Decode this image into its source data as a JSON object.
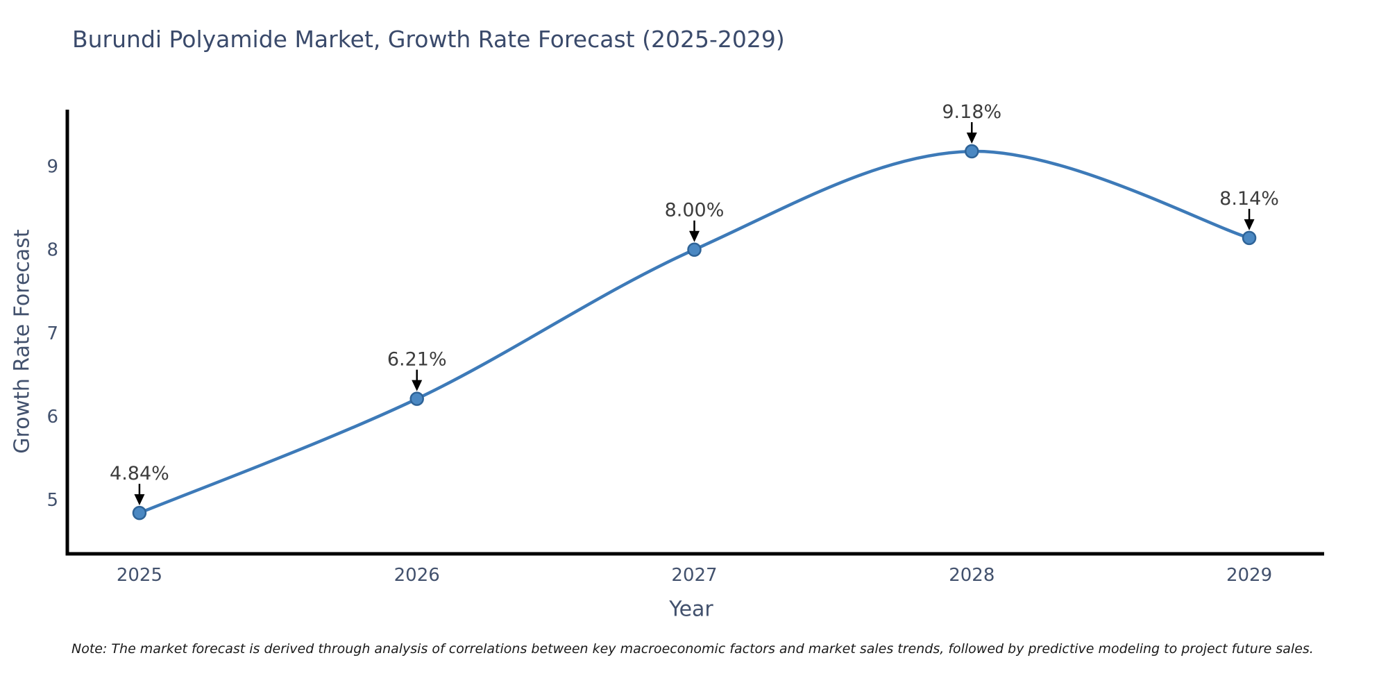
{
  "figure": {
    "title": "Burundi Polyamide Market, Growth Rate Forecast (2025-2029)",
    "note": "Note: The market forecast is derived through analysis of correlations between key macroeconomic factors and market sales trends, followed by predictive modeling to project future sales."
  },
  "chart_data": {
    "type": "line",
    "title": "Burundi Polyamide Market, Growth Rate Forecast (2025-2029)",
    "xlabel": "Year",
    "ylabel": "Growth Rate Forecast",
    "x": [
      2025,
      2026,
      2027,
      2028,
      2029
    ],
    "series": [
      {
        "name": "Growth Rate Forecast",
        "values": [
          4.84,
          6.21,
          8.0,
          9.18,
          8.14
        ]
      }
    ],
    "point_labels": [
      "4.84%",
      "6.21%",
      "8.00%",
      "9.18%",
      "8.14%"
    ],
    "xticks": [
      "2025",
      "2026",
      "2027",
      "2028",
      "2029"
    ],
    "yticks": [
      5,
      6,
      7,
      8,
      9
    ],
    "xlim": [
      2024.74,
      2029.27
    ],
    "ylim": [
      4.35,
      9.68
    ],
    "grid": false,
    "legend": "none",
    "annotation_style": "black-arrow-pointing-down-to-point",
    "curve_style": "smooth-spline",
    "colors": {
      "line": "#3d7ab8",
      "marker_fill": "#4b88c2",
      "marker_edge": "#2e6397",
      "axis": "#000000",
      "tick_label": "#42516d",
      "axis_label": "#42516d",
      "title": "#3a4a6b",
      "annotation_text": "#3d3d3d",
      "annotation_arrow": "#000000",
      "note_text": "#1a1a1a",
      "background": "#ffffff"
    }
  }
}
